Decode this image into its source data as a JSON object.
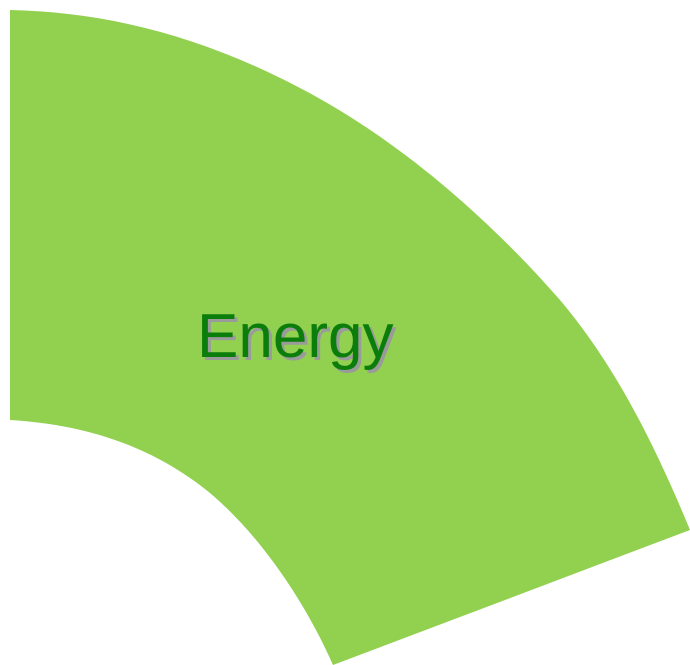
{
  "segment": {
    "label": "Energy",
    "fill_color": "#92d050",
    "label_color": "#0b7d0b",
    "label_shadow_color": "#9a9a9a"
  }
}
